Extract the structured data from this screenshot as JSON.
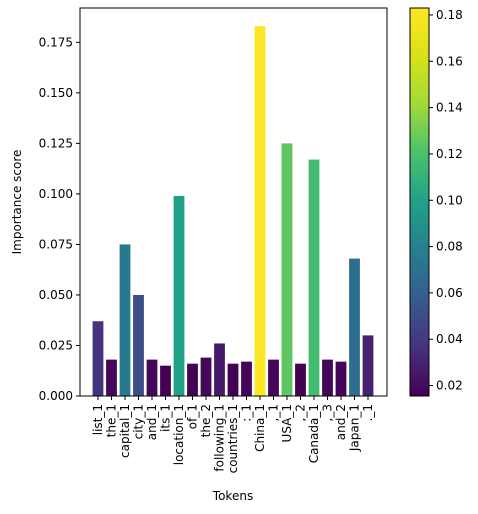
{
  "chart_data": {
    "type": "bar",
    "title": "",
    "xlabel": "Tokens",
    "ylabel": "Importance score",
    "ylim": [
      0,
      0.192
    ],
    "yticks": [
      0.0,
      0.025,
      0.05,
      0.075,
      0.1,
      0.125,
      0.15,
      0.175
    ],
    "ytick_labels": [
      "0.000",
      "0.025",
      "0.050",
      "0.075",
      "0.100",
      "0.125",
      "0.150",
      "0.175"
    ],
    "categories": [
      "list_1",
      "the_1",
      "capital_1",
      "city_1",
      "and_1",
      "its_1",
      "location_1",
      "of_1",
      "the_2",
      "following_1",
      "countries_1",
      ":_1",
      "China_1",
      ",_1",
      "USA_1",
      ",_2",
      "Canada_1",
      ",_3",
      "and_2",
      "Japan_1",
      "._1"
    ],
    "values": [
      0.037,
      0.018,
      0.075,
      0.05,
      0.018,
      0.015,
      0.099,
      0.016,
      0.019,
      0.026,
      0.016,
      0.017,
      0.183,
      0.018,
      0.125,
      0.016,
      0.117,
      0.018,
      0.017,
      0.068,
      0.03
    ],
    "colorbar": {
      "colormap": "viridis",
      "vmin": 0.0155,
      "vmax": 0.183,
      "ticks": [
        0.02,
        0.04,
        0.06,
        0.08,
        0.1,
        0.12,
        0.14,
        0.16,
        0.18
      ],
      "tick_labels": [
        "0.02",
        "0.04",
        "0.06",
        "0.08",
        "0.10",
        "0.12",
        "0.14",
        "0.16",
        "0.18"
      ]
    },
    "grid": false,
    "legend": "none"
  }
}
